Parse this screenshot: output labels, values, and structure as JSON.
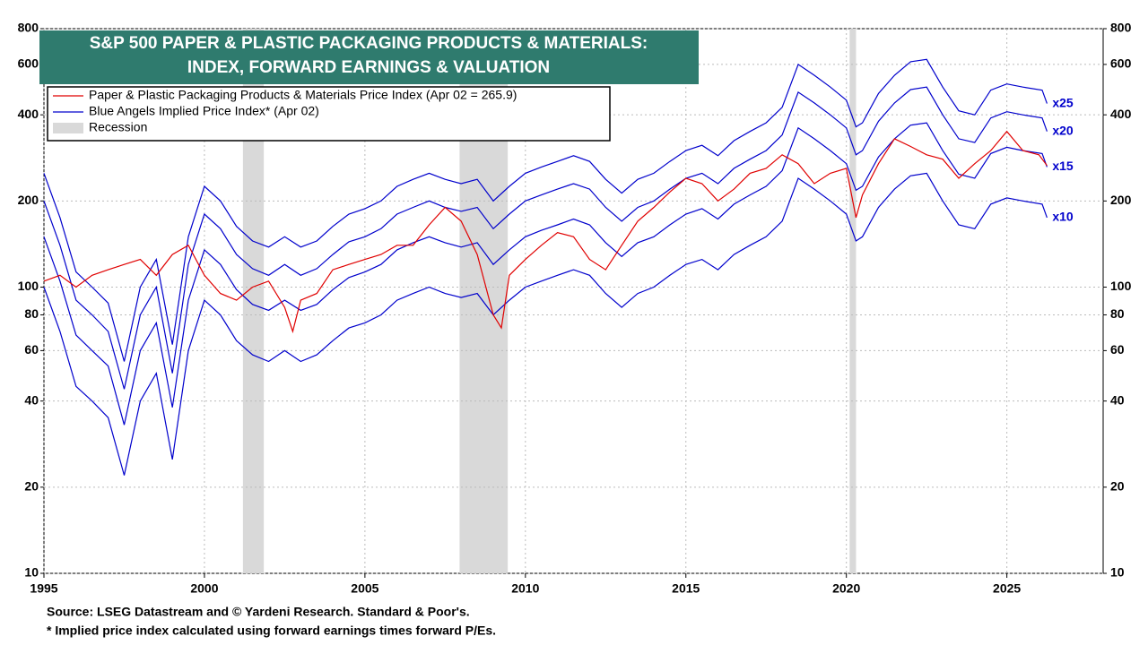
{
  "chart_data": {
    "type": "line",
    "title": [
      "S&P 500 PAPER & PLASTIC PACKAGING PRODUCTS & MATERIALS:",
      "INDEX, FORWARD EARNINGS & VALUATION"
    ],
    "footnotes": [
      "Source: LSEG Datastream and © Yardeni Research. Standard & Poor's.",
      "* Implied price index calculated using forward earnings times forward P/Es."
    ],
    "legend": [
      {
        "label": "Paper & Plastic Packaging Products & Materials Price Index (Apr 02 = 265.9)",
        "color": "#e00000"
      },
      {
        "label": "Blue Angels Implied Price Index* (Apr 02)",
        "color": "#0000cc"
      },
      {
        "label": "Recession",
        "color": "#d9d9d9"
      }
    ],
    "recessions": [
      [
        2001.2,
        2001.85
      ],
      [
        2007.95,
        2009.45
      ],
      [
        2020.1,
        2020.3
      ]
    ],
    "log_scale": true,
    "grid": true,
    "xlim": [
      1995,
      2028
    ],
    "xticks": [
      1995,
      2000,
      2005,
      2010,
      2015,
      2020,
      2025
    ],
    "ylim": [
      10,
      800
    ],
    "yticks": [
      10,
      20,
      40,
      60,
      80,
      100,
      200,
      400,
      600,
      800
    ],
    "series": [
      {
        "name": "x10",
        "color": "#0000cc",
        "x": [
          1995,
          1995.5,
          1996,
          1996.5,
          1997,
          1997.5,
          1998,
          1998.5,
          1999,
          1999.5,
          2000,
          2000.5,
          2001,
          2001.5,
          2002,
          2002.5,
          2003,
          2003.5,
          2004,
          2004.5,
          2005,
          2005.5,
          2006,
          2006.5,
          2007,
          2007.5,
          2008,
          2008.5,
          2009,
          2009.5,
          2010,
          2010.5,
          2011,
          2011.5,
          2012,
          2012.5,
          2013,
          2013.5,
          2014,
          2014.5,
          2015,
          2015.5,
          2016,
          2016.5,
          2017,
          2017.5,
          2018,
          2018.5,
          2019,
          2019.5,
          2020,
          2020.3,
          2020.5,
          2021,
          2021.5,
          2022,
          2022.5,
          2023,
          2023.5,
          2024,
          2024.5,
          2025,
          2025.5,
          2026.1,
          2026.25
        ],
        "values": [
          100,
          70,
          45,
          40,
          35,
          22,
          40,
          50,
          25,
          60,
          90,
          80,
          65,
          58,
          55,
          60,
          55,
          58,
          65,
          72,
          75,
          80,
          90,
          95,
          100,
          95,
          92,
          95,
          80,
          90,
          100,
          105,
          110,
          115,
          110,
          95,
          85,
          95,
          100,
          110,
          120,
          125,
          115,
          130,
          140,
          150,
          170,
          240,
          220,
          200,
          180,
          145,
          150,
          190,
          220,
          245,
          250,
          200,
          165,
          160,
          195,
          205,
          200,
          195,
          175
        ]
      },
      {
        "name": "x15",
        "color": "#0000cc",
        "x": [
          1995,
          1995.5,
          1996,
          1996.5,
          1997,
          1997.5,
          1998,
          1998.5,
          1999,
          1999.5,
          2000,
          2000.5,
          2001,
          2001.5,
          2002,
          2002.5,
          2003,
          2003.5,
          2004,
          2004.5,
          2005,
          2005.5,
          2006,
          2006.5,
          2007,
          2007.5,
          2008,
          2008.5,
          2009,
          2009.5,
          2010,
          2010.5,
          2011,
          2011.5,
          2012,
          2012.5,
          2013,
          2013.5,
          2014,
          2014.5,
          2015,
          2015.5,
          2016,
          2016.5,
          2017,
          2017.5,
          2018,
          2018.5,
          2019,
          2019.5,
          2020,
          2020.3,
          2020.5,
          2021,
          2021.5,
          2022,
          2022.5,
          2023,
          2023.5,
          2024,
          2024.5,
          2025,
          2025.5,
          2026.1,
          2026.25
        ],
        "values": [
          150,
          105,
          68,
          60,
          53,
          33,
          60,
          75,
          38,
          90,
          135,
          120,
          98,
          87,
          83,
          90,
          83,
          87,
          98,
          108,
          113,
          120,
          135,
          143,
          150,
          143,
          138,
          143,
          120,
          135,
          150,
          158,
          165,
          173,
          165,
          143,
          128,
          143,
          150,
          165,
          180,
          188,
          173,
          195,
          210,
          225,
          255,
          360,
          330,
          300,
          270,
          218,
          225,
          285,
          330,
          368,
          375,
          300,
          248,
          240,
          293,
          308,
          300,
          293,
          263
        ]
      },
      {
        "name": "x20",
        "color": "#0000cc",
        "x": [
          1995,
          1995.5,
          1996,
          1996.5,
          1997,
          1997.5,
          1998,
          1998.5,
          1999,
          1999.5,
          2000,
          2000.5,
          2001,
          2001.5,
          2002,
          2002.5,
          2003,
          2003.5,
          2004,
          2004.5,
          2005,
          2005.5,
          2006,
          2006.5,
          2007,
          2007.5,
          2008,
          2008.5,
          2009,
          2009.5,
          2010,
          2010.5,
          2011,
          2011.5,
          2012,
          2012.5,
          2013,
          2013.5,
          2014,
          2014.5,
          2015,
          2015.5,
          2016,
          2016.5,
          2017,
          2017.5,
          2018,
          2018.5,
          2019,
          2019.5,
          2020,
          2020.3,
          2020.5,
          2021,
          2021.5,
          2022,
          2022.5,
          2023,
          2023.5,
          2024,
          2024.5,
          2025,
          2025.5,
          2026.1,
          2026.25
        ],
        "values": [
          200,
          140,
          90,
          80,
          70,
          44,
          80,
          100,
          50,
          120,
          180,
          160,
          130,
          116,
          110,
          120,
          110,
          116,
          130,
          144,
          150,
          160,
          180,
          190,
          200,
          190,
          184,
          190,
          160,
          180,
          200,
          210,
          220,
          230,
          220,
          190,
          170,
          190,
          200,
          220,
          240,
          250,
          230,
          260,
          280,
          300,
          340,
          480,
          440,
          400,
          360,
          290,
          300,
          380,
          440,
          490,
          500,
          400,
          330,
          320,
          390,
          410,
          400,
          390,
          350
        ]
      },
      {
        "name": "x25",
        "color": "#0000cc",
        "x": [
          1995,
          1995.5,
          1996,
          1996.5,
          1997,
          1997.5,
          1998,
          1998.5,
          1999,
          1999.5,
          2000,
          2000.5,
          2001,
          2001.5,
          2002,
          2002.5,
          2003,
          2003.5,
          2004,
          2004.5,
          2005,
          2005.5,
          2006,
          2006.5,
          2007,
          2007.5,
          2008,
          2008.5,
          2009,
          2009.5,
          2010,
          2010.5,
          2011,
          2011.5,
          2012,
          2012.5,
          2013,
          2013.5,
          2014,
          2014.5,
          2015,
          2015.5,
          2016,
          2016.5,
          2017,
          2017.5,
          2018,
          2018.5,
          2019,
          2019.5,
          2020,
          2020.3,
          2020.5,
          2021,
          2021.5,
          2022,
          2022.5,
          2023,
          2023.5,
          2024,
          2024.5,
          2025,
          2025.5,
          2026.1,
          2026.25
        ],
        "values": [
          250,
          175,
          113,
          100,
          88,
          55,
          100,
          125,
          63,
          150,
          225,
          200,
          163,
          145,
          138,
          150,
          138,
          145,
          163,
          180,
          188,
          200,
          225,
          238,
          250,
          238,
          230,
          238,
          200,
          225,
          250,
          263,
          275,
          288,
          275,
          238,
          213,
          238,
          250,
          275,
          300,
          313,
          288,
          325,
          350,
          375,
          425,
          600,
          550,
          500,
          450,
          363,
          375,
          475,
          550,
          613,
          625,
          500,
          413,
          400,
          488,
          513,
          500,
          488,
          438
        ]
      },
      {
        "name": "Paper & Plastic Packaging Products & Materials Price Index",
        "color": "#e00000",
        "x": [
          1995,
          1995.5,
          1996,
          1996.5,
          1997,
          1997.5,
          1998,
          1998.5,
          1999,
          1999.5,
          2000,
          2000.5,
          2001,
          2001.5,
          2002,
          2002.5,
          2002.75,
          2003,
          2003.5,
          2004,
          2004.5,
          2005,
          2005.5,
          2006,
          2006.5,
          2007,
          2007.5,
          2008,
          2008.5,
          2009,
          2009.25,
          2009.5,
          2010,
          2010.5,
          2011,
          2011.5,
          2012,
          2012.5,
          2013,
          2013.5,
          2014,
          2014.5,
          2015,
          2015.5,
          2016,
          2016.5,
          2017,
          2017.5,
          2018,
          2018.5,
          2019,
          2019.5,
          2020,
          2020.3,
          2020.5,
          2021,
          2021.5,
          2022,
          2022.5,
          2023,
          2023.5,
          2024,
          2024.5,
          2025,
          2025.5,
          2026,
          2026.25
        ],
        "values": [
          105,
          110,
          100,
          110,
          115,
          120,
          125,
          110,
          130,
          140,
          110,
          95,
          90,
          100,
          105,
          85,
          70,
          90,
          95,
          115,
          120,
          125,
          130,
          140,
          140,
          165,
          190,
          170,
          130,
          80,
          72,
          110,
          125,
          140,
          155,
          150,
          125,
          115,
          140,
          170,
          190,
          215,
          240,
          230,
          200,
          220,
          250,
          260,
          290,
          270,
          230,
          250,
          260,
          175,
          210,
          270,
          330,
          310,
          290,
          280,
          240,
          270,
          300,
          350,
          300,
          290,
          266
        ]
      }
    ]
  }
}
